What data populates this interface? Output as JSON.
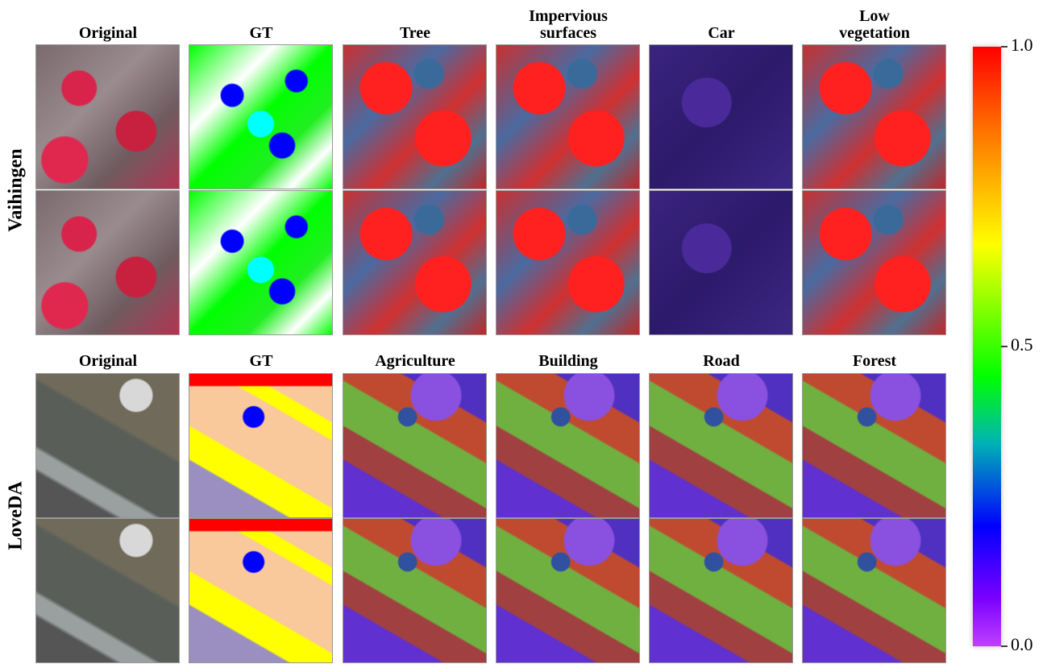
{
  "sections": [
    {
      "label": "Vaihingen",
      "columns": [
        "Original",
        "GT",
        "Tree",
        "Impervious surfaces",
        "Car",
        "Low vegetation"
      ]
    },
    {
      "label": "LoveDA",
      "columns": [
        "Original",
        "GT",
        "Agriculture",
        "Building",
        "Road",
        "Forest"
      ]
    }
  ],
  "colorbar": {
    "lim": [
      0,
      1
    ],
    "ticks": [
      {
        "value": 0,
        "label": "0.0"
      },
      {
        "value": 0.5,
        "label": "0.5"
      },
      {
        "value": 1,
        "label": "1.0"
      }
    ]
  }
}
